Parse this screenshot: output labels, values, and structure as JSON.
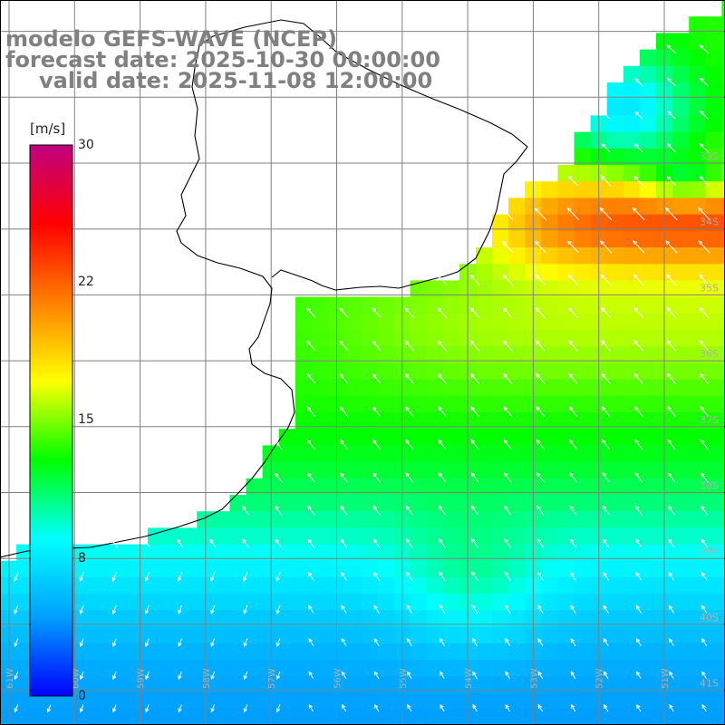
{
  "header": {
    "model": "modelo GEFS-WAVE (NCEP)",
    "forecast": "forecast date: 2025-10-30 00:00:00",
    "valid": "valid date: 2025-11-08 12:00:00"
  },
  "colorbar": {
    "unit": "[m/s]",
    "min": 0,
    "max": 30,
    "ticks": [
      "30",
      "22",
      "15",
      "8",
      "0"
    ],
    "tick_values": [
      30,
      22,
      15,
      8,
      0
    ],
    "colors": [
      "#0000ff",
      "#00a0ff",
      "#00ffff",
      "#00ff00",
      "#ffff00",
      "#ff8000",
      "#ff0000",
      "#c0007f"
    ]
  },
  "map": {
    "lon_range": [
      -61,
      -50
    ],
    "lat_range": [
      -41.5,
      -30
    ],
    "lat_labels": [
      "33S",
      "34S",
      "35S",
      "36S",
      "37S",
      "38S",
      "39S",
      "40S",
      "41S"
    ],
    "lon_labels": [
      "61W",
      "60W",
      "59W",
      "58W",
      "57W",
      "56W",
      "55W",
      "54W",
      "53W",
      "52W",
      "51W"
    ],
    "land_color": "#ffffff",
    "grid_color": "#808080"
  }
}
